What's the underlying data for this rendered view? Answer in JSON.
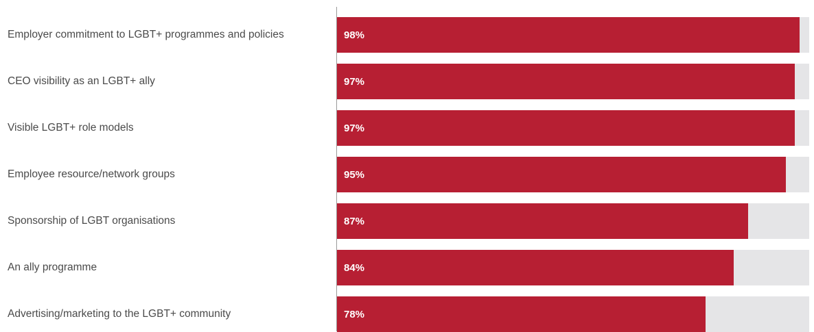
{
  "chart_data": {
    "type": "bar",
    "orientation": "horizontal",
    "categories": [
      "Employer commitment to LGBT+ programmes and policies",
      "CEO visibility as an LGBT+ ally",
      "Visible LGBT+ role models",
      "Employee resource/network groups",
      "Sponsorship of LGBT organisations",
      "An ally programme",
      "Advertising/marketing to the LGBT+ community"
    ],
    "values": [
      98,
      97,
      97,
      95,
      87,
      84,
      78
    ],
    "value_labels": [
      "98%",
      "97%",
      "97%",
      "95%",
      "87%",
      "84%",
      "78%"
    ],
    "xlim": [
      0,
      100
    ],
    "grid": false,
    "legend": "none",
    "bar_color": "#b71f33",
    "track_color": "#e5e5e7",
    "title": "",
    "xlabel": "",
    "ylabel": ""
  }
}
